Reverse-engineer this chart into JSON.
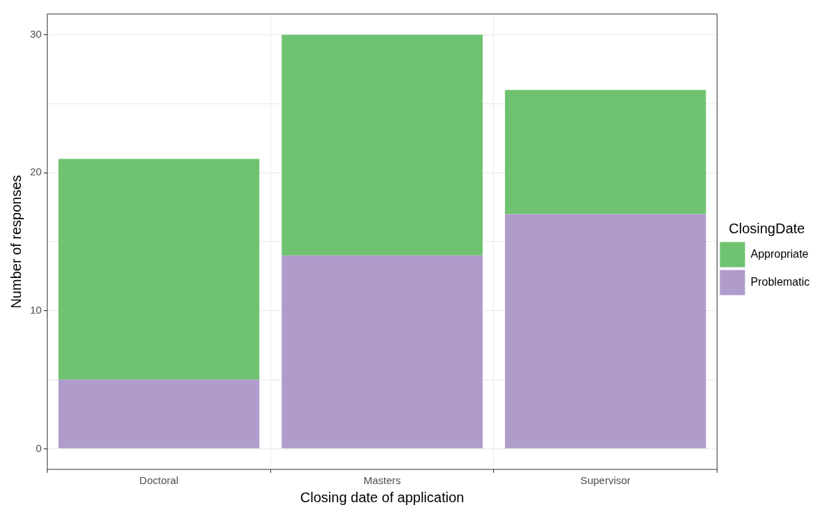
{
  "chart_data": {
    "type": "bar",
    "stacked": true,
    "xlabel": "Closing date of application",
    "ylabel": "Number of responses",
    "legend_title": "ClosingDate",
    "legend": "right",
    "grid": true,
    "categories": [
      "Doctoral",
      "Masters",
      "Supervisor"
    ],
    "series": [
      {
        "name": "Problematic",
        "color": "#af9ccb",
        "values": [
          5,
          14,
          17
        ]
      },
      {
        "name": "Appropriate",
        "color": "#6fc26f",
        "values": [
          16,
          16,
          9
        ]
      }
    ],
    "ylim": [
      -1.5,
      31.5
    ],
    "yticks": [
      0,
      {
        "value": 5,
        "label": null
      },
      10,
      {
        "value": 15,
        "label": null
      },
      20,
      {
        "value": 25,
        "label": null
      },
      30
    ]
  }
}
